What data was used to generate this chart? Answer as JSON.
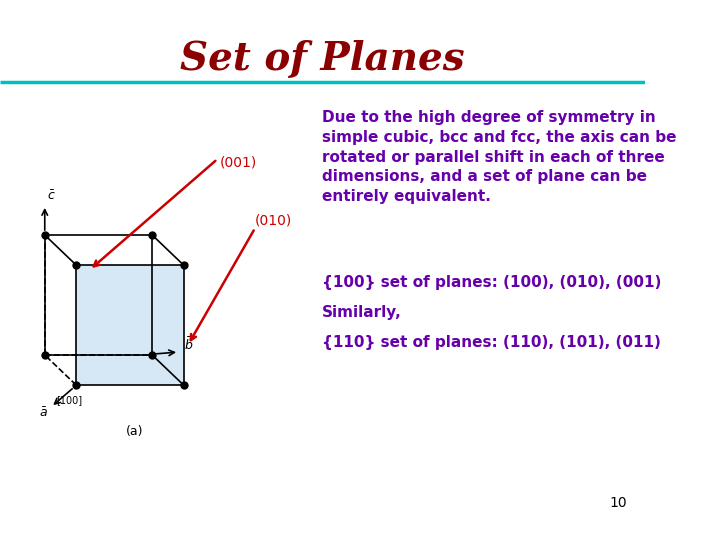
{
  "title": "Set of Planes",
  "title_color": "#8B0000",
  "title_fontsize": 28,
  "title_fontstyle": "italic",
  "bg_color": "#ffffff",
  "teal_line_color": "#00BFBF",
  "body_text_color": "#6600AA",
  "body_text": "Due to the high degree of symmetry in\nsimple cubic, bcc and fcc, the axis can be\nrotated or parallel shift in each of three\ndimensions, and a set of plane can be\nentirely equivalent.",
  "line1": "{100} set of planes: (100), (010), (001)",
  "line2": "Similarly,",
  "line3": "{110} set of planes: (110), (101), (011)",
  "label_001": "(001)",
  "label_010": "(010)",
  "label_100": "[100]",
  "label_a": "(a)",
  "page_number": "10",
  "arrow_color": "#CC0000",
  "cube_line_color": "#000000",
  "cube_fill_color": "#D6E8F5",
  "dashed_color": "#555555",
  "axis_label_color": "#000000",
  "text_fontsize": 11,
  "small_fontsize": 9
}
